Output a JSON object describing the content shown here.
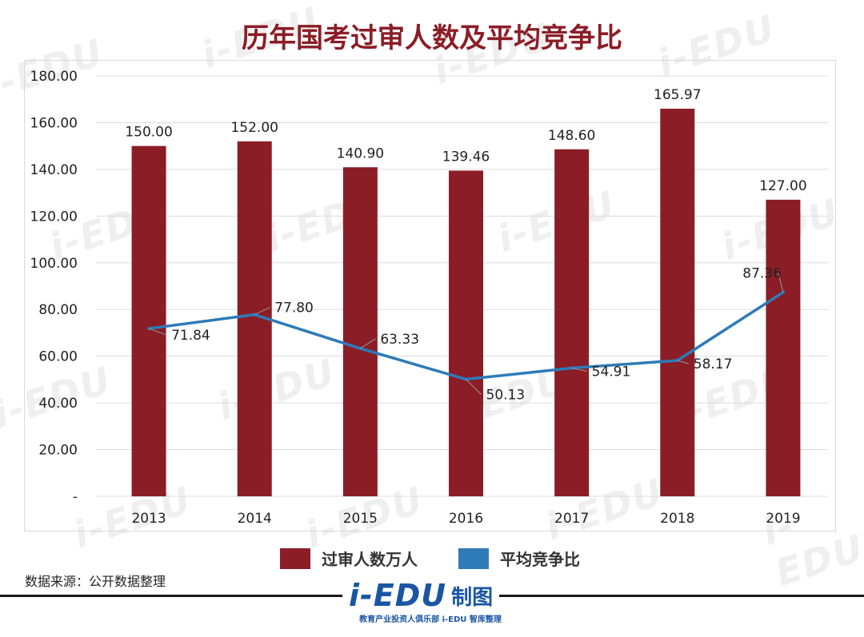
{
  "watermark": {
    "text": "i-EDU"
  },
  "footer": {
    "source": "数据来源：公开数据整理",
    "logo_text": "i-EDU",
    "logo_zhi": "制图",
    "logo_sub": "教育产业投资人俱乐部  i-EDU 智库整理"
  },
  "chart_data": {
    "type": "bar",
    "title": "历年国考过审人数及平均竞争比",
    "categories": [
      "2013",
      "2014",
      "2015",
      "2016",
      "2017",
      "2018",
      "2019"
    ],
    "ylim": [
      0,
      180
    ],
    "yticks": [
      "-",
      "20.00",
      "40.00",
      "60.00",
      "80.00",
      "100.00",
      "120.00",
      "140.00",
      "160.00",
      "180.00"
    ],
    "grid": true,
    "legend_position": "bottom",
    "series": [
      {
        "name": "过审人数万人",
        "type": "bar",
        "color": "#8b1d26",
        "values": [
          150.0,
          152.0,
          140.9,
          139.46,
          148.6,
          165.97,
          127.0
        ],
        "labels": [
          "150.00",
          "152.00",
          "140.90",
          "139.46",
          "148.60",
          "165.97",
          "127.00"
        ]
      },
      {
        "name": "平均竞争比",
        "type": "line",
        "color": "#2e7bb8",
        "values": [
          71.84,
          77.8,
          63.33,
          50.13,
          54.91,
          58.17,
          87.36
        ],
        "labels": [
          "71.84",
          "77.80",
          "63.33",
          "50.13",
          "54.91",
          "58.17",
          "87.36"
        ]
      }
    ]
  }
}
